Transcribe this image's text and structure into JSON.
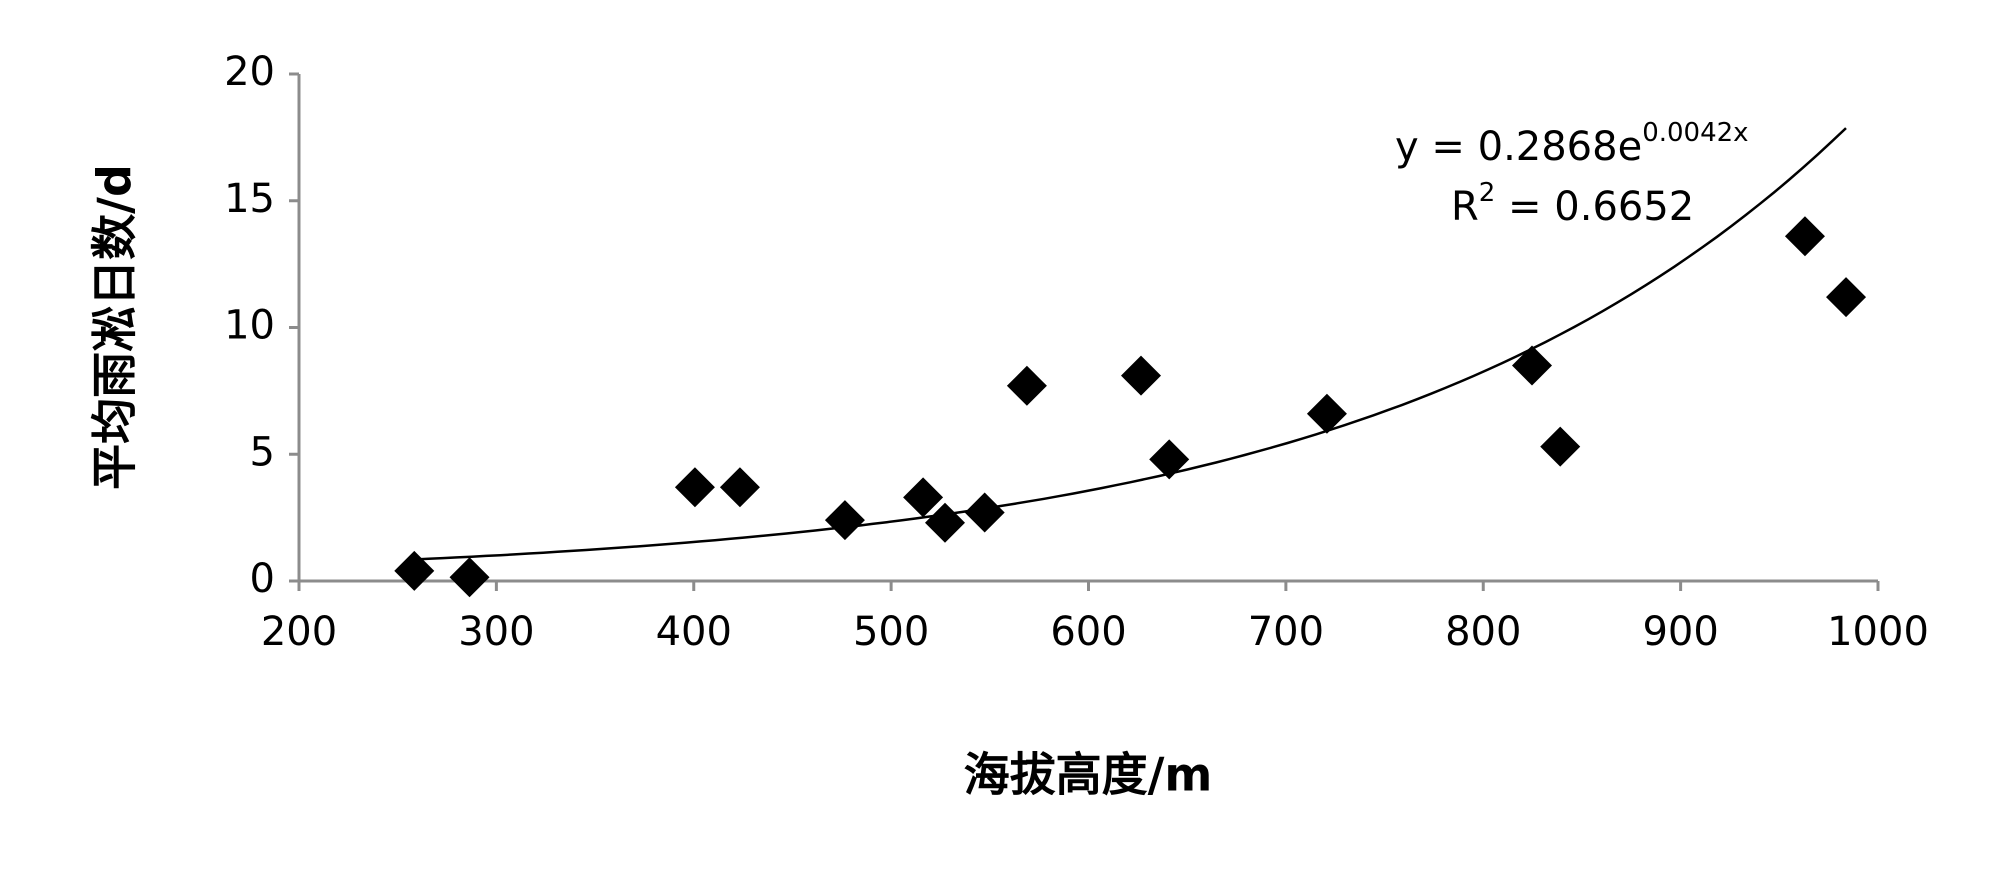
{
  "chart_data": {
    "type": "scatter",
    "x_label": "海拔高度/m",
    "y_label": "平均雨凇日数/d",
    "x": [
      258.4,
      286.4,
      400.6,
      423.4,
      476.6,
      516.2,
      527.3,
      547.4,
      568.8,
      626.6,
      640.9,
      720.8,
      824.7,
      839.0,
      963.0,
      983.8
    ],
    "values": [
      0.4,
      0.15,
      3.7,
      3.7,
      2.4,
      3.3,
      2.3,
      2.7,
      7.7,
      8.1,
      4.8,
      6.6,
      8.5,
      5.3,
      13.6,
      11.2
    ],
    "color": "#000000",
    "xlim": [
      200,
      1000
    ],
    "xticks": [
      200,
      300,
      400,
      500,
      600,
      700,
      800,
      900,
      1000
    ],
    "ylim": [
      0,
      20
    ],
    "yticks": [
      0,
      5,
      10,
      15,
      20
    ],
    "grid": false,
    "trendline": {
      "type": "exponential",
      "a": 0.2868,
      "b": 0.0042,
      "r2": 0.6652,
      "equation": [
        "y = 0.2868e",
        "0.0042x"
      ],
      "r_squared": [
        "R",
        "2",
        " = 0.6652"
      ]
    }
  }
}
